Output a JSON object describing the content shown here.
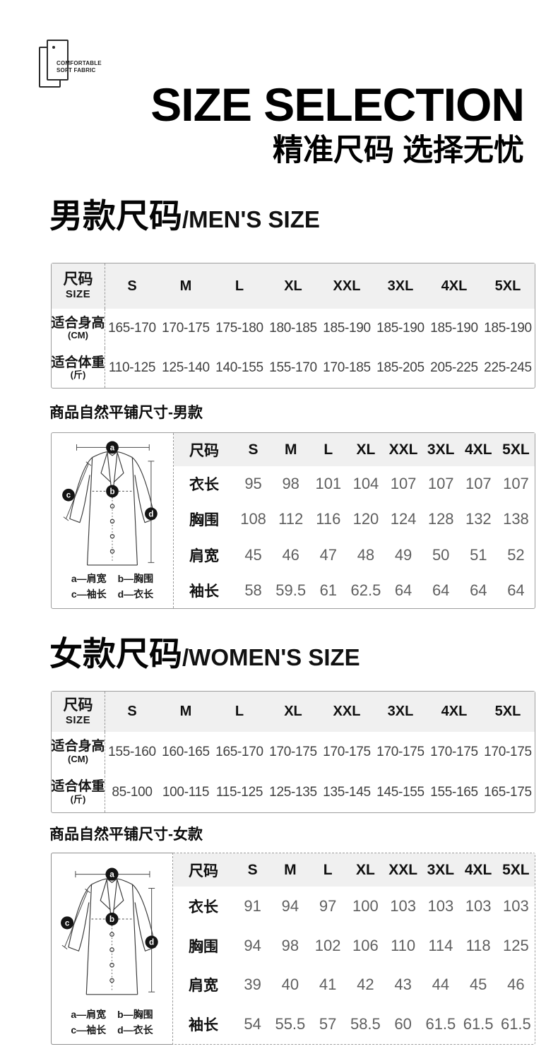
{
  "badge": {
    "line1": "COMFORTABLE",
    "line2": "SOFT FABRIC"
  },
  "hero": {
    "title": "SIZE SELECTION",
    "subtitle": "精准尺码 选择无忧"
  },
  "sizes": [
    "S",
    "M",
    "L",
    "XL",
    "XXL",
    "3XL",
    "4XL",
    "5XL"
  ],
  "diagram": {
    "markers": [
      "a",
      "b",
      "c",
      "d"
    ],
    "legend": [
      "a—肩宽",
      "b—胸围",
      "c—袖长",
      "d—衣长"
    ]
  },
  "men": {
    "heading_zh": "男款尺码",
    "heading_en": "/MEN'S SIZE",
    "fit": {
      "corner_zh": "尺码",
      "corner_en": "SIZE",
      "rows": [
        {
          "label": "适合身高",
          "unit": "(CM)",
          "values": [
            "165-170",
            "170-175",
            "175-180",
            "180-185",
            "185-190",
            "185-190",
            "185-190",
            "185-190"
          ]
        },
        {
          "label": "适合体重",
          "unit": "(斤)",
          "values": [
            "110-125",
            "125-140",
            "140-155",
            "155-170",
            "170-185",
            "185-205",
            "205-225",
            "225-245"
          ]
        }
      ]
    },
    "flat_label": "商品自然平铺尺寸-男款",
    "flat": {
      "corner": "尺码",
      "rows": [
        {
          "label": "衣长",
          "values": [
            "95",
            "98",
            "101",
            "104",
            "107",
            "107",
            "107",
            "107"
          ]
        },
        {
          "label": "胸围",
          "values": [
            "108",
            "112",
            "116",
            "120",
            "124",
            "128",
            "132",
            "138"
          ]
        },
        {
          "label": "肩宽",
          "values": [
            "45",
            "46",
            "47",
            "48",
            "49",
            "50",
            "51",
            "52"
          ]
        },
        {
          "label": "袖长",
          "values": [
            "58",
            "59.5",
            "61",
            "62.5",
            "64",
            "64",
            "64",
            "64"
          ]
        }
      ]
    }
  },
  "women": {
    "heading_zh": "女款尺码",
    "heading_en": "/WOMEN'S SIZE",
    "fit": {
      "corner_zh": "尺码",
      "corner_en": "SIZE",
      "rows": [
        {
          "label": "适合身高",
          "unit": "(CM)",
          "values": [
            "155-160",
            "160-165",
            "165-170",
            "170-175",
            "170-175",
            "170-175",
            "170-175",
            "170-175"
          ]
        },
        {
          "label": "适合体重",
          "unit": "(斤)",
          "values": [
            "85-100",
            "100-115",
            "115-125",
            "125-135",
            "135-145",
            "145-155",
            "155-165",
            "165-175"
          ]
        }
      ]
    },
    "flat_label": "商品自然平铺尺寸-女款",
    "flat": {
      "corner": "尺码",
      "rows": [
        {
          "label": "衣长",
          "values": [
            "91",
            "94",
            "97",
            "100",
            "103",
            "103",
            "103",
            "103"
          ]
        },
        {
          "label": "胸围",
          "values": [
            "94",
            "98",
            "102",
            "106",
            "110",
            "114",
            "118",
            "125"
          ]
        },
        {
          "label": "肩宽",
          "values": [
            "39",
            "40",
            "41",
            "42",
            "43",
            "44",
            "45",
            "46"
          ]
        },
        {
          "label": "袖长",
          "values": [
            "54",
            "55.5",
            "57",
            "58.5",
            "60",
            "61.5",
            "61.5",
            "61.5"
          ]
        }
      ]
    }
  }
}
